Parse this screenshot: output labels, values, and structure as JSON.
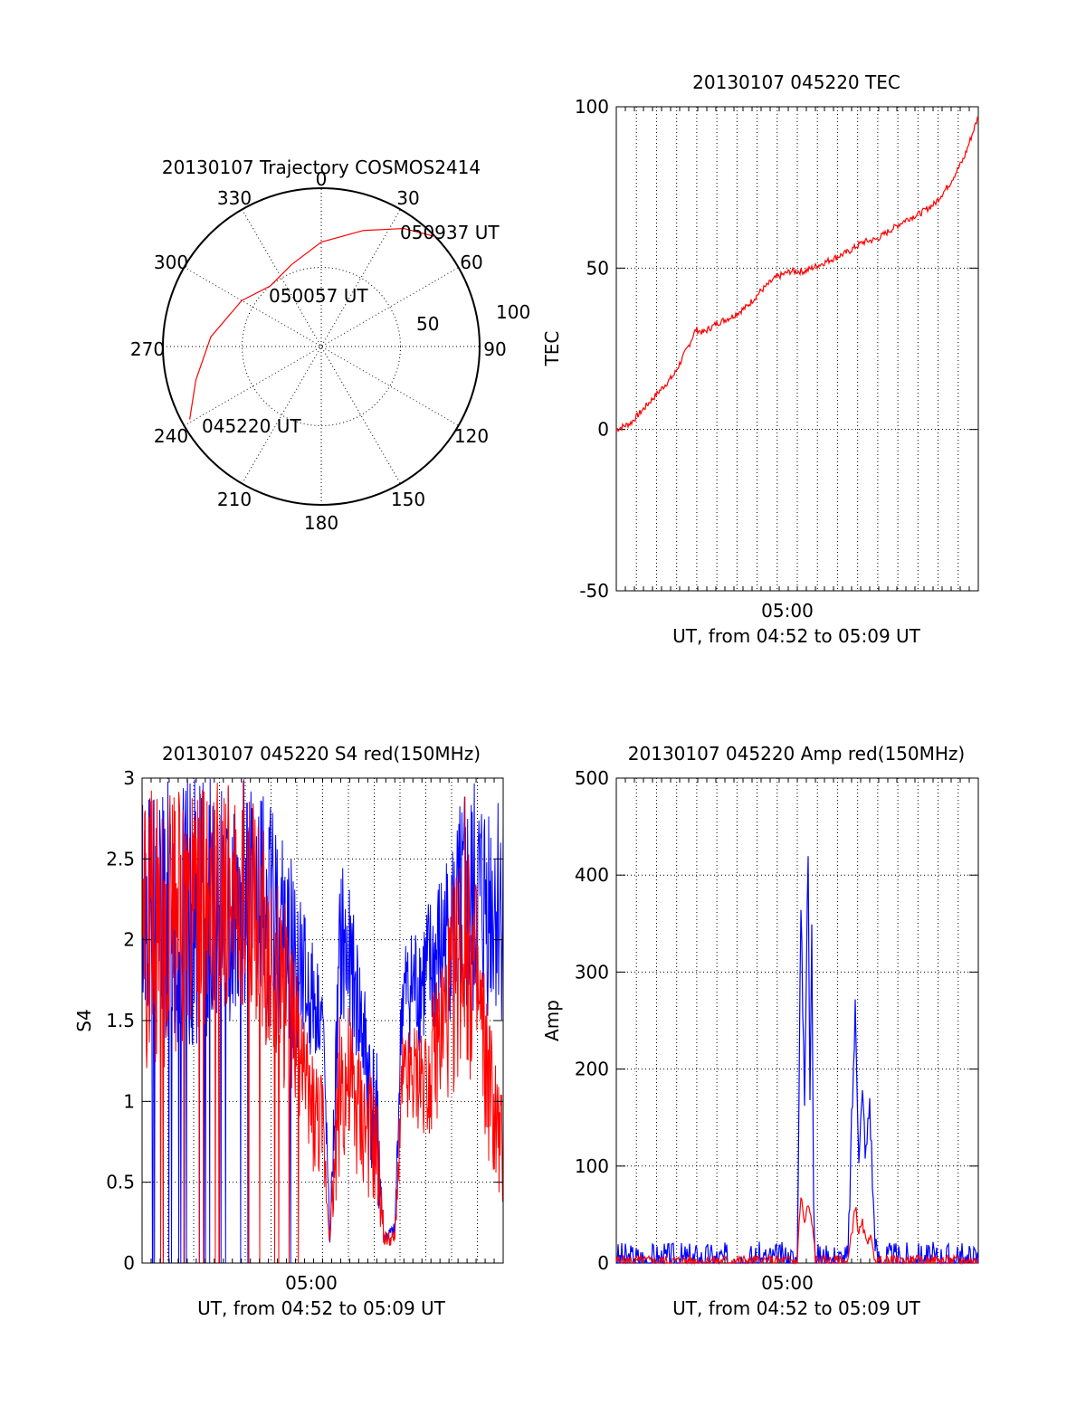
{
  "chart_data": [
    {
      "type": "polar",
      "title": "20130107 Trajectory COSMOS2414",
      "azimuth_labels": [
        "0",
        "30",
        "60",
        "90",
        "120",
        "150",
        "180",
        "210",
        "240",
        "270",
        "300",
        "330"
      ],
      "radial_labels": [
        "50",
        "100"
      ],
      "series": [
        {
          "color": "#ff0000",
          "points": [
            {
              "az": 241,
              "zenith": 95
            },
            {
              "az": 255,
              "zenith": 82
            },
            {
              "az": 275,
              "zenith": 70
            },
            {
              "az": 300,
              "zenith": 58
            },
            {
              "az": 320,
              "zenith": 50
            },
            {
              "az": 340,
              "zenith": 55
            },
            {
              "az": 0,
              "zenith": 66
            },
            {
              "az": 20,
              "zenith": 78
            },
            {
              "az": 35,
              "zenith": 91
            },
            {
              "az": 46,
              "zenith": 100
            }
          ]
        }
      ],
      "annotations": [
        "050937 UT",
        "050057 UT",
        "045220 UT"
      ]
    },
    {
      "type": "line",
      "title": "20130107 045220 TEC",
      "ylabel": "TEC",
      "xlabel": "UT, from 04:52 to 05:09 UT",
      "xtick_labels": [
        "05:00"
      ],
      "ylim": [
        -50,
        100
      ],
      "yticks": [
        "100",
        "50",
        "0",
        "-50"
      ],
      "series": [
        {
          "color": "#ff0000",
          "x": [
            0,
            0.04,
            0.08,
            0.12,
            0.16,
            0.2,
            0.22,
            0.24,
            0.28,
            0.32,
            0.36,
            0.4,
            0.44,
            0.48,
            0.52,
            0.56,
            0.6,
            0.64,
            0.68,
            0.72,
            0.76,
            0.8,
            0.84,
            0.88,
            0.92,
            0.96,
            1.0
          ],
          "y": [
            0,
            2,
            7,
            12,
            17,
            26,
            31,
            30,
            33,
            35,
            38,
            43,
            47,
            49,
            49,
            51,
            53,
            55,
            58,
            59,
            62,
            65,
            67,
            70,
            76,
            84,
            97
          ]
        }
      ]
    },
    {
      "type": "line",
      "title": "20130107 045220 S4 red(150MHz)",
      "ylabel": "S4",
      "xlabel": "UT, from 04:52 to 05:09 UT",
      "xtick_labels": [
        "05:00"
      ],
      "ylim": [
        0,
        3
      ],
      "yticks": [
        "3",
        "2.5",
        "2",
        "1.5",
        "1",
        "0.5",
        "0"
      ],
      "series": [
        {
          "name": "",
          "color": "#0000ff",
          "envelope": [
            [
              0.0,
              1.5,
              3
            ],
            [
              0.1,
              1.2,
              3
            ],
            [
              0.2,
              1.4,
              3
            ],
            [
              0.3,
              1.6,
              3
            ],
            [
              0.4,
              1.3,
              2.7
            ],
            [
              0.45,
              1.2,
              2.2
            ],
            [
              0.5,
              1.3,
              1.8
            ],
            [
              0.52,
              0.1,
              0.2
            ],
            [
              0.55,
              1.4,
              2.6
            ],
            [
              0.6,
              1.2,
              2.0
            ],
            [
              0.65,
              0.3,
              1.3
            ],
            [
              0.67,
              0.1,
              0.2
            ],
            [
              0.7,
              0.15,
              0.25
            ],
            [
              0.72,
              1.3,
              2.0
            ],
            [
              0.8,
              1.3,
              2.3
            ],
            [
              0.85,
              1.5,
              2.6
            ],
            [
              0.9,
              1.3,
              3
            ],
            [
              0.95,
              1.5,
              3
            ],
            [
              1.0,
              1.5,
              3
            ]
          ]
        },
        {
          "name": "",
          "color": "#ff0000",
          "envelope": [
            [
              0.0,
              1.2,
              3
            ],
            [
              0.1,
              1.2,
              3
            ],
            [
              0.2,
              1.5,
              3
            ],
            [
              0.3,
              1.6,
              3
            ],
            [
              0.4,
              1.0,
              2.2
            ],
            [
              0.45,
              0.6,
              1.5
            ],
            [
              0.5,
              0.5,
              1.2
            ],
            [
              0.52,
              0.1,
              0.2
            ],
            [
              0.55,
              0.6,
              1.8
            ],
            [
              0.6,
              0.5,
              1.4
            ],
            [
              0.65,
              0.3,
              1.1
            ],
            [
              0.67,
              0.1,
              0.2
            ],
            [
              0.7,
              0.1,
              0.2
            ],
            [
              0.72,
              0.8,
              1.4
            ],
            [
              0.8,
              0.8,
              1.6
            ],
            [
              0.85,
              1.0,
              2.2
            ],
            [
              0.9,
              1.2,
              3
            ],
            [
              0.95,
              0.7,
              1.8
            ],
            [
              1.0,
              0.2,
              1.0
            ]
          ]
        }
      ]
    },
    {
      "type": "line",
      "title": "20130107 045220 Amp red(150MHz)",
      "ylabel": "Amp",
      "xlabel": "UT, from 04:52 to 05:09 UT",
      "xtick_labels": [
        "05:00"
      ],
      "ylim": [
        0,
        500
      ],
      "yticks": [
        "500",
        "400",
        "300",
        "200",
        "100",
        "0"
      ],
      "series": [
        {
          "color": "#0000ff",
          "x": [
            0.0,
            0.5,
            0.505,
            0.51,
            0.52,
            0.53,
            0.535,
            0.54,
            0.545,
            0.55,
            0.56,
            0.57,
            0.6,
            0.64,
            0.65,
            0.66,
            0.67,
            0.68,
            0.69,
            0.7,
            0.71,
            0.72,
            1.0
          ],
          "y": [
            2,
            2,
            200,
            360,
            180,
            420,
            160,
            360,
            80,
            2,
            2,
            2,
            2,
            2,
            140,
            260,
            120,
            170,
            110,
            170,
            60,
            2,
            2
          ]
        },
        {
          "color": "#ff0000",
          "x": [
            0.0,
            0.5,
            0.505,
            0.51,
            0.52,
            0.53,
            0.54,
            0.545,
            0.55,
            0.56,
            0.6,
            0.64,
            0.65,
            0.66,
            0.67,
            0.68,
            0.69,
            0.7,
            0.71,
            0.72,
            1.0
          ],
          "y": [
            2,
            2,
            40,
            70,
            40,
            60,
            40,
            30,
            2,
            2,
            2,
            2,
            30,
            60,
            30,
            40,
            20,
            30,
            10,
            2,
            2
          ]
        }
      ]
    }
  ]
}
